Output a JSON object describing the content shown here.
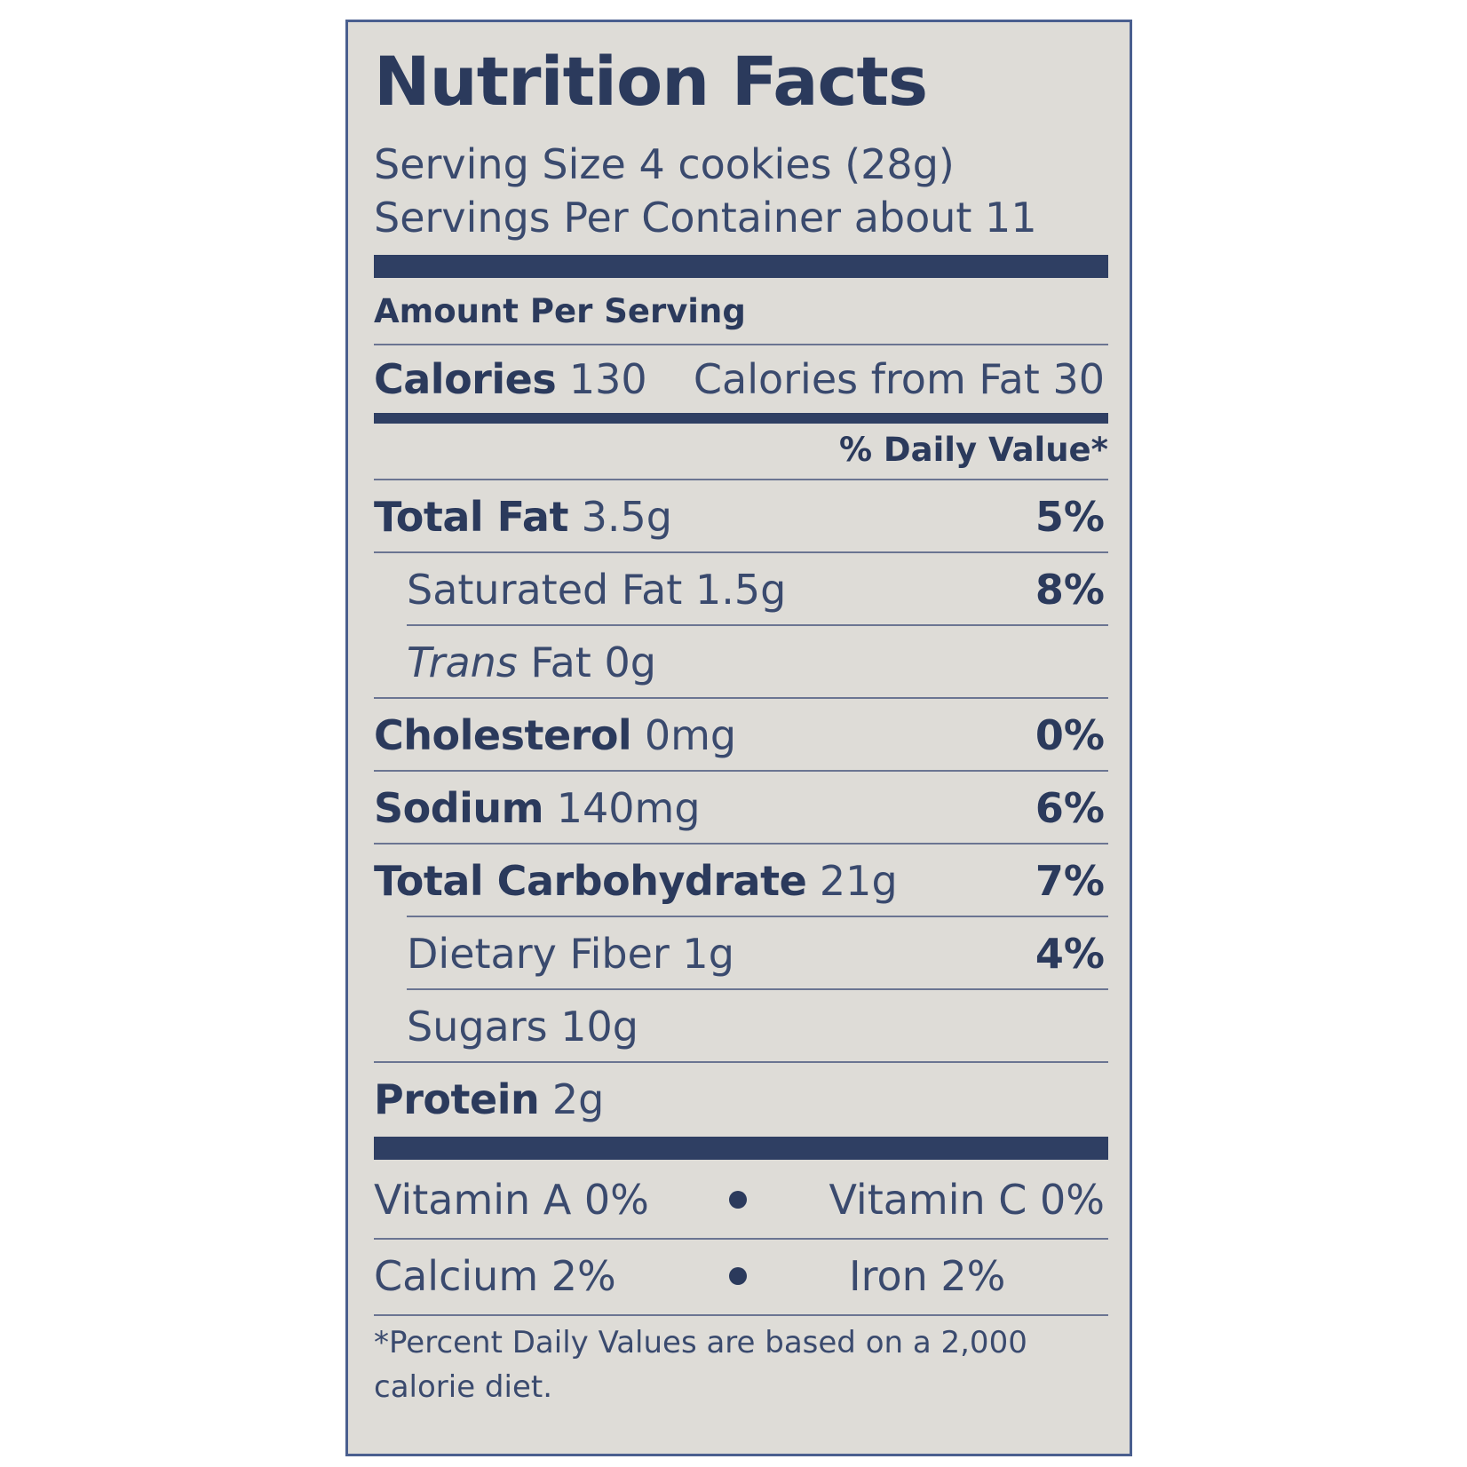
{
  "label": {
    "title": "Nutrition Facts",
    "serving_size": "Serving Size 4 cookies (28g)",
    "servings_per_container": "Servings Per Container about 11",
    "amount_per_serving": "Amount Per Serving",
    "calories_label": "Calories",
    "calories_value": "130",
    "calories_from_fat": "Calories from Fat 30",
    "daily_value_header": "% Daily Value*",
    "nutrients": [
      {
        "name": "Total Fat",
        "amount": "3.5g",
        "dv": "5%"
      },
      {
        "name": "Saturated Fat",
        "amount": "1.5g",
        "dv": "8%"
      },
      {
        "name_italic": "Trans",
        "name": "Fat",
        "amount": "0g",
        "dv": ""
      },
      {
        "name": "Cholesterol",
        "amount": "0mg",
        "dv": "0%"
      },
      {
        "name": "Sodium",
        "amount": "140mg",
        "dv": "6%"
      },
      {
        "name": "Total Carbohydrate",
        "amount": "21g",
        "dv": "7%"
      },
      {
        "name": "Dietary Fiber",
        "amount": "1g",
        "dv": "4%"
      },
      {
        "name": "Sugars",
        "amount": "10g",
        "dv": ""
      },
      {
        "name": "Protein",
        "amount": "2g",
        "dv": ""
      }
    ],
    "vitamins": {
      "vitamin_a": "Vitamin A 0%",
      "vitamin_c": "Vitamin C 0%",
      "calcium": "Calcium 2%",
      "iron": "Iron 2%"
    },
    "footnote": "*Percent Daily Values are based on a 2,000 calorie diet."
  },
  "colors": {
    "ink": "#2b3a5c",
    "background": "#dedcd7",
    "border": "#4a5f8f"
  }
}
